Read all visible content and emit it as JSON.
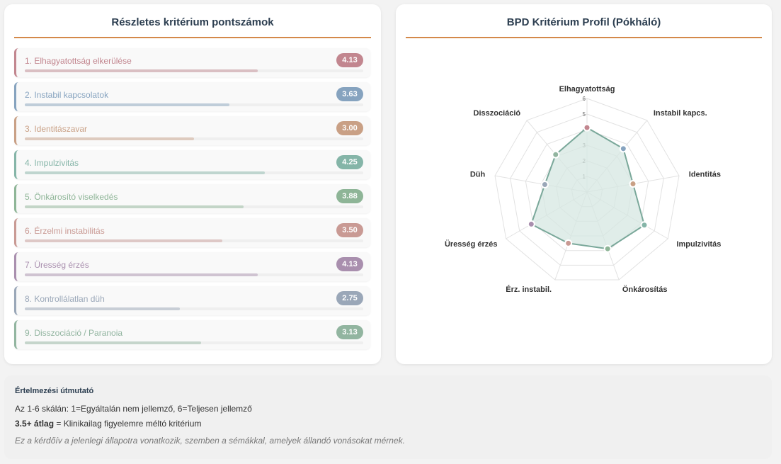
{
  "left_panel": {
    "title": "Részletes kritérium pontszámok",
    "max_score": 6,
    "criteria": [
      {
        "label": "1. Elhagyatottság elkerülése",
        "value": 4.13,
        "display": "4.13",
        "color": "#c2868f"
      },
      {
        "label": "2. Instabil kapcsolatok",
        "value": 3.63,
        "display": "3.63",
        "color": "#86a3bf"
      },
      {
        "label": "3. Identitászavar",
        "value": 3.0,
        "display": "3.00",
        "color": "#c9a085"
      },
      {
        "label": "4. Impulzivitás",
        "value": 4.25,
        "display": "4.25",
        "color": "#85b5a8"
      },
      {
        "label": "5. Önkárosító viselkedés",
        "value": 3.88,
        "display": "3.88",
        "color": "#8eb597"
      },
      {
        "label": "6. Érzelmi instabilitás",
        "value": 3.5,
        "display": "3.50",
        "color": "#c99a94"
      },
      {
        "label": "7. Üresség érzés",
        "value": 4.13,
        "display": "4.13",
        "color": "#a98fae"
      },
      {
        "label": "8. Kontrollálatlan düh",
        "value": 2.75,
        "display": "2.75",
        "color": "#9aa7b8"
      },
      {
        "label": "9. Disszociáció / Paranoia",
        "value": 3.13,
        "display": "3.13",
        "color": "#92b5a0"
      }
    ]
  },
  "right_panel": {
    "title": "BPD Kritérium Profil (Pókháló)"
  },
  "chart_data": {
    "type": "radar",
    "categories": [
      "Elhagyatottság",
      "Instabil kapcs.",
      "Identitás",
      "Impulzivitás",
      "Önkárosítás",
      "Érz. instabil.",
      "Üresség érzés",
      "Düh",
      "Disszociáció"
    ],
    "values": [
      4.13,
      3.63,
      3.0,
      4.25,
      3.88,
      3.5,
      4.13,
      2.75,
      3.13
    ],
    "point_colors": [
      "#c2868f",
      "#86a3bf",
      "#c9a085",
      "#85b5a8",
      "#8eb597",
      "#c99a94",
      "#a98fae",
      "#9aa7b8",
      "#92b5a0"
    ],
    "range": [
      0,
      6
    ],
    "ticks": [
      1,
      2,
      3,
      4,
      5,
      6
    ],
    "line_color": "#7aa89a",
    "fill_color": "#d6e7e1",
    "grid": true
  },
  "guide": {
    "title": "Értelmezési útmutató",
    "line1": "Az 1-6 skálán: 1=Egyáltalán nem jellemző, 6=Teljesen jellemző",
    "line2_bold": "3.5+ átlag",
    "line2_rest": " = Klinikailag figyelemre méltó kritérium",
    "note": "Ez a kérdőív a jelenlegi állapotra vonatkozik, szemben a sémákkal, amelyek állandó vonásokat mérnek."
  }
}
